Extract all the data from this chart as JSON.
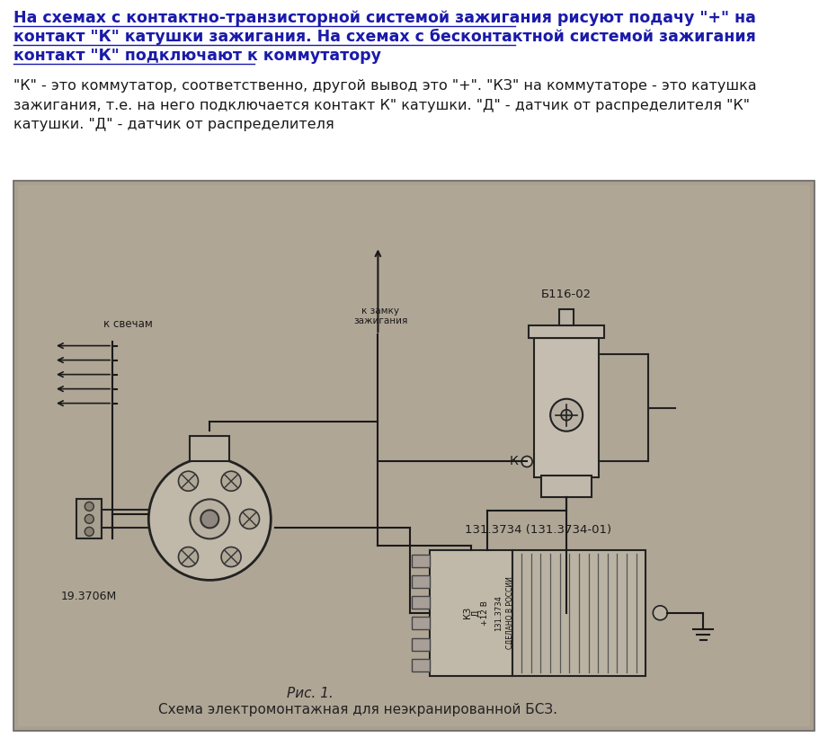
{
  "bg_color": "#ffffff",
  "title_lines": [
    "На схемах с контактно-транзисторной системой зажигания рисуют подачу \"+\" на",
    "контакт \"К\" катушки зажигания. На схемах с бесконтактной системой зажигания",
    "контакт \"К\" подключают к коммутатору"
  ],
  "title_color": "#1a1aaa",
  "title_fontsize": 12.5,
  "body_text": "\"К\" - это коммутатор, соответственно, другой вывод это \"+\". \"КЗ\" на коммутаторе - это катушка\nзажигания, т.е. на него подключается контакт К\" катушки. \"Д\" - датчик от распределителя \"К\"\nкатушки. \"Д\" - датчик от распределителя",
  "body_color": "#1a1a1a",
  "body_fontsize": 11.5,
  "image_bg": "#aaa090",
  "image_bg2": "#b8b0a0",
  "diagram_border_color": "#666666",
  "fig_bg": "#ffffff",
  "caption_line1": "Рис. 1.",
  "caption_line2": "Схема электромонтажная для неэкранированной БСЗ.",
  "caption_color": "#222222",
  "caption_fontsize": 11
}
